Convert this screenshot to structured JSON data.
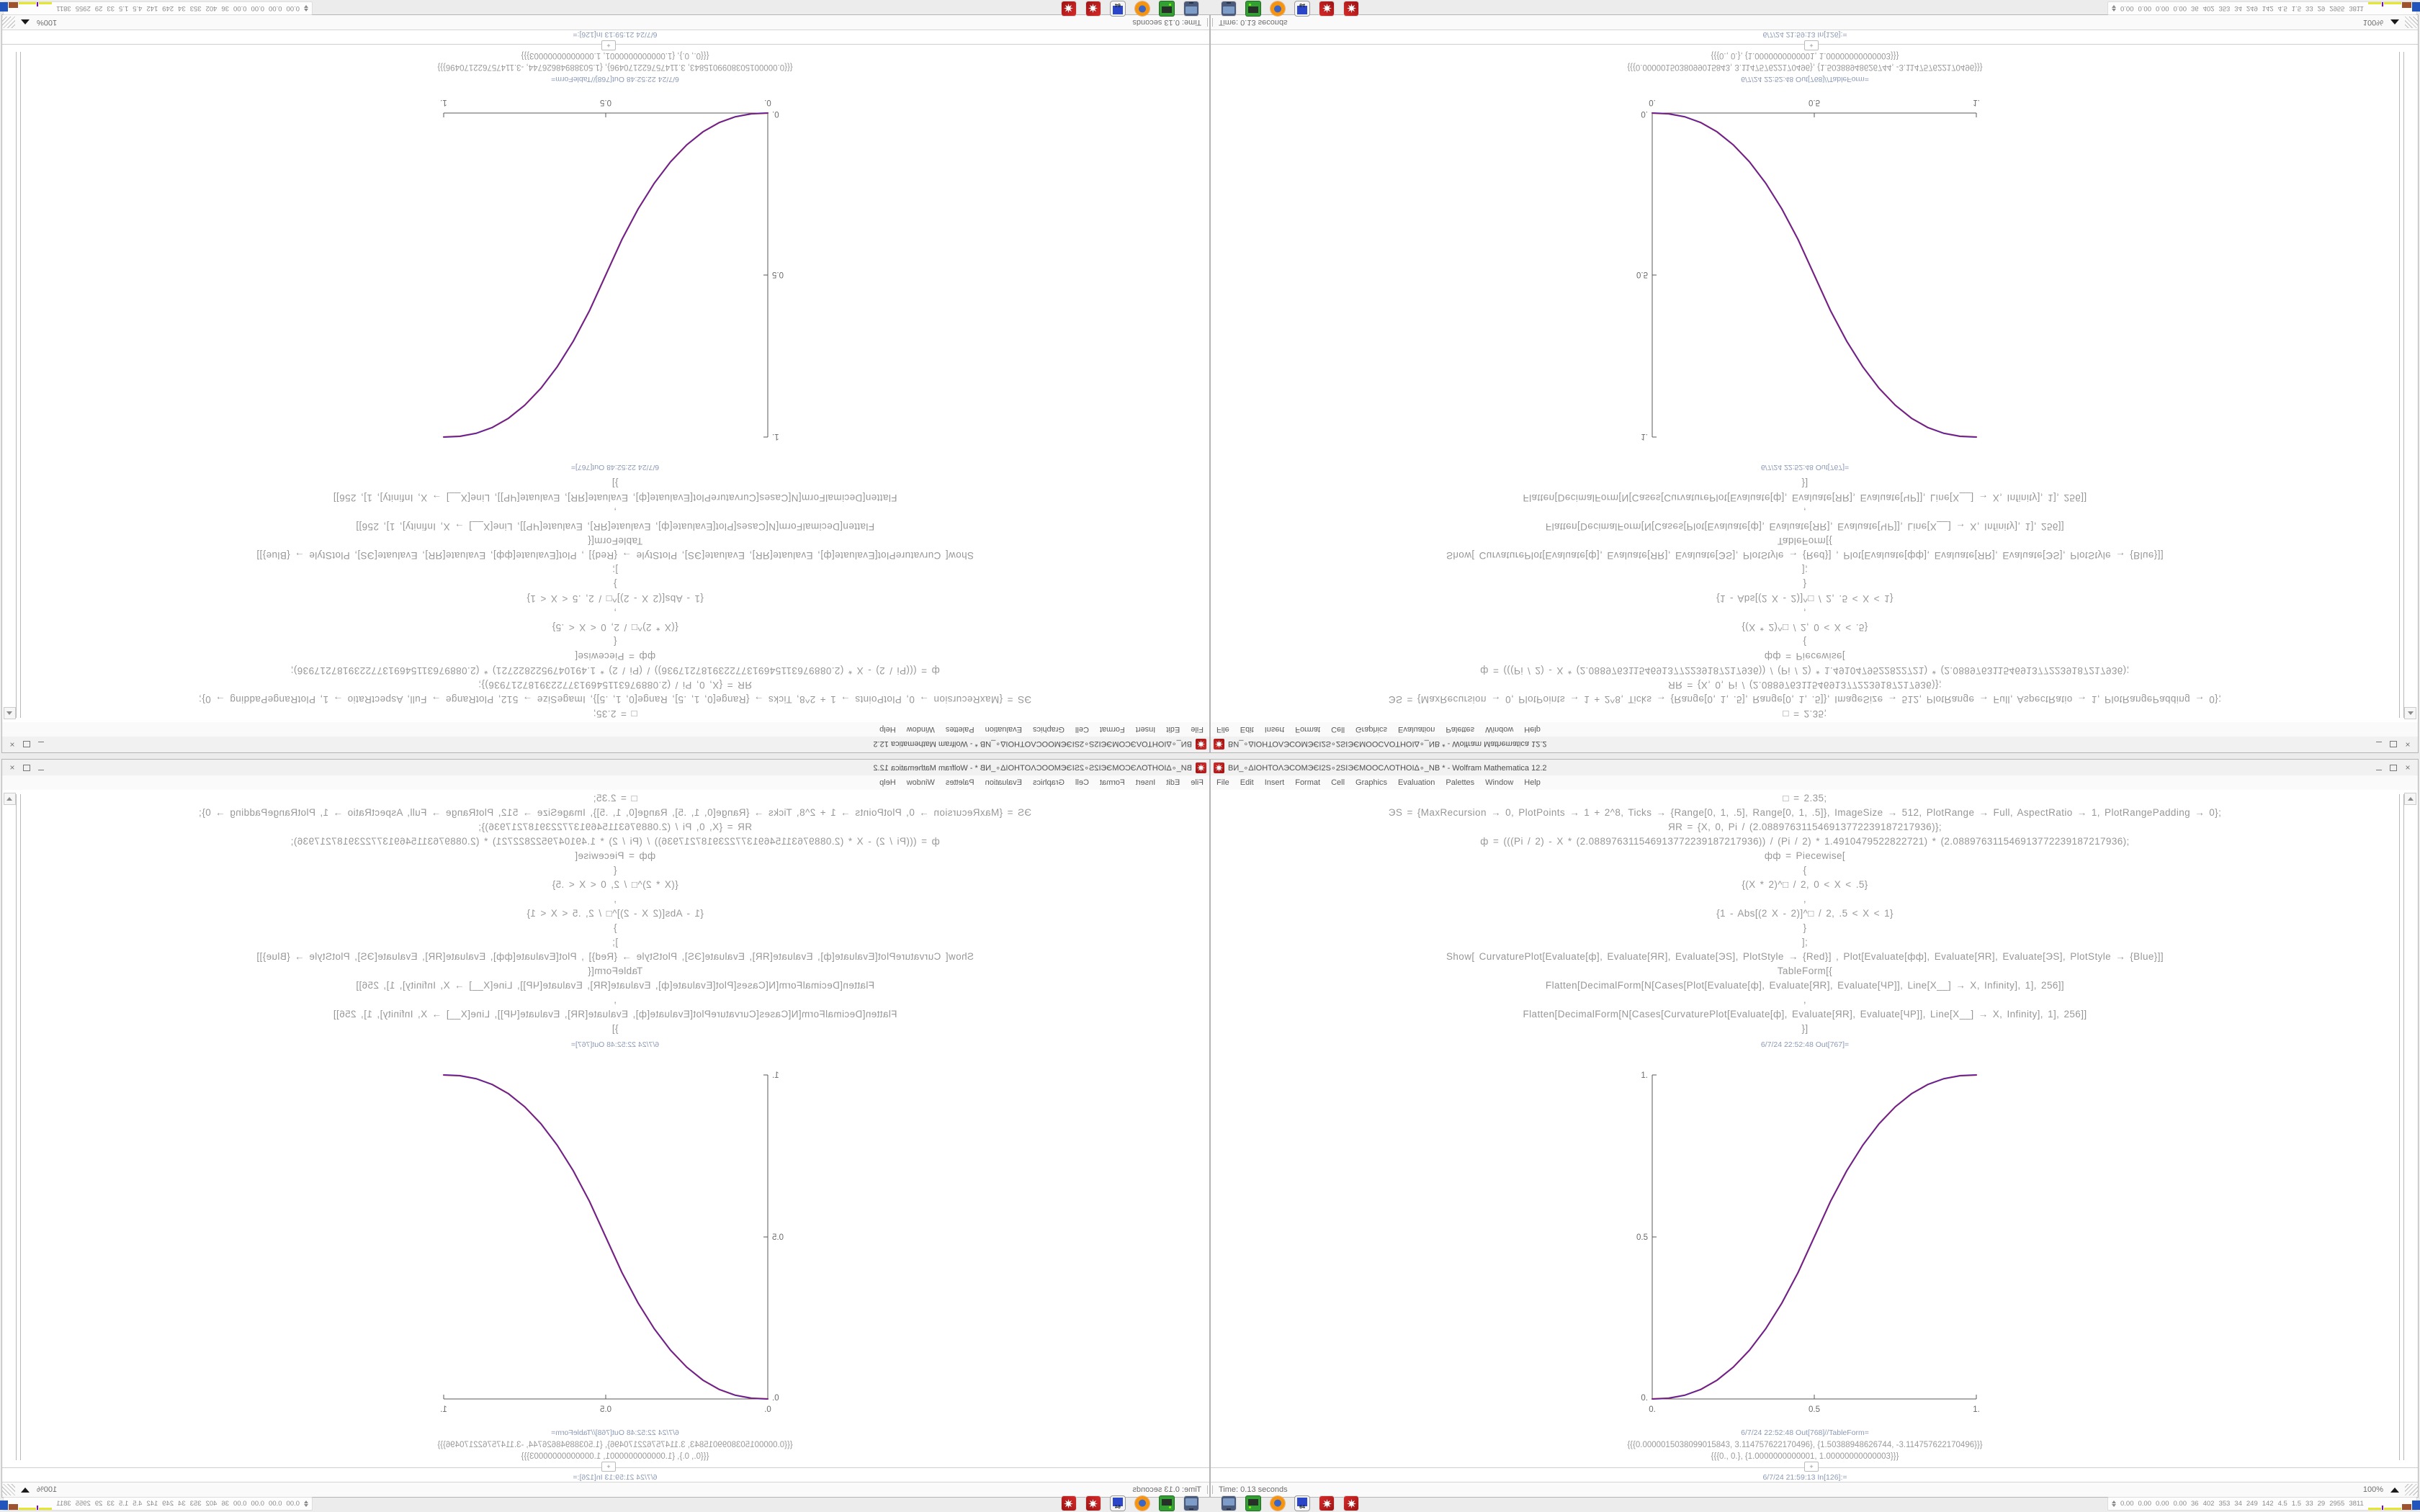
{
  "window": {
    "title": "ВИ_∘ΔІОНТОΛЭСОМЭЄІ2S∘2SІЭЄМООСΛОТНОІΔ∘_NB * - Wolfram Mathematica 12.2",
    "app_icon": "mathematica-spikey-icon",
    "controls": [
      "minimize",
      "maximize",
      "close"
    ]
  },
  "menu": {
    "items": [
      "File",
      "Edit",
      "Insert",
      "Format",
      "Cell",
      "Graphics",
      "Evaluation",
      "Palettes",
      "Window",
      "Help"
    ]
  },
  "notebook": {
    "code_lines": [
      "□ = 2.35;",
      "ЭS = {MaxRecursion → 0, PlotPoints → 1 + 2^8, Ticks → {Range[0, 1, .5], Range[0, 1, .5]}, ImageSize → 512, PlotRange → Full, AspectRatio → 1, PlotRangePadding → 0};",
      "ЯR = {X, 0, Pi / (2.088976311546913772239187217936)};",
      "ф = (((Pi / 2) - X * (2.088976311546913772239187217936)) / (Pi / 2) * 1.4910479522822721) * (2.088976311546913772239187217936);",
      "фф = Piecewise[",
      "{",
      "{(X * 2)^□ / 2, 0 < X < .5}",
      ",",
      "{1 - Abs[(2 X - 2)]^□ / 2, .5 < X < 1}",
      "}",
      "];",
      "Show[  CurvaturePlot[Evaluate[ф], Evaluate[ЯR], Evaluate[ЭS], PlotStyle → {Red}]  ,  Plot[Evaluate[фф], Evaluate[ЯR], Evaluate[ЭS], PlotStyle → {Blue}]]",
      "TableForm[{",
      "Flatten[DecimalForm[N[Cases[Plot[Evaluate[ф], Evaluate[ЯR], Evaluate[ЧP]], Line[X__] → X, Infinity], 1], 256]]",
      ",",
      "Flatten[DecimalForm[N[Cases[CurvaturePlot[Evaluate[ф], Evaluate[ЯR], Evaluate[ЧP]], Line[X__] → X, Infinity], 1], 256]]",
      "}]"
    ],
    "out767_label": "6/7/24 22:52:48 Out[767]=",
    "out768_label": "6/7/24 22:52:48 Out[768]//TableForm=",
    "out768_rows": [
      "{{{0.0000015038099015843, 3.114757622170496}, {1.50388948626744, -3.114757622170496}}}",
      "{{{0., 0.}, {1.0000000000001, 1.00000000000003}}}"
    ],
    "insert_plus": "+",
    "in126_label": "6/7/24 21:59:13 In[126]:="
  },
  "status": {
    "left": "Time: 0.13 seconds",
    "zoom": "100%"
  },
  "taskbar": {
    "icons": [
      {
        "name": "display-settings-icon",
        "icon": "icon-display"
      },
      {
        "name": "disk-utility-icon",
        "icon": "icon-disk"
      },
      {
        "name": "firefox-icon",
        "icon": "icon-firefox"
      },
      {
        "name": "floppy-64-icon",
        "icon": "icon-floppy",
        "label": "64"
      },
      {
        "name": "mathematica-icon",
        "icon": "icon-mathematica",
        "star": true
      },
      {
        "name": "mathematica-icon-2",
        "icon": "icon-mathematica",
        "star": true
      }
    ],
    "tray": {
      "numbers": [
        "0.00",
        "0.00",
        "0.00",
        "0.00",
        "36",
        "402",
        "353",
        "34",
        "249",
        "142",
        "4.5",
        "1.5",
        "33",
        "29",
        "2955",
        "3811"
      ],
      "graph": [
        {
          "c": "#e6e62e",
          "w": 18,
          "h": 3
        },
        {
          "c": "#8800cc",
          "w": 2,
          "h": 6
        },
        {
          "c": "#e6e62e",
          "w": 24,
          "h": 3
        },
        {
          "c": "#a0522d",
          "w": 13,
          "h": 8
        },
        {
          "c": "#2255bb",
          "w": 14,
          "h": 13
        },
        {
          "c": "#a0522d",
          "w": 13,
          "h": 8
        },
        {
          "c": "#44bb22",
          "w": 28,
          "h": 3
        },
        {
          "c": "#33cc33",
          "w": 2,
          "h": 7
        },
        {
          "c": "#33cc33",
          "w": 3,
          "h": 5
        }
      ]
    }
  },
  "chart_data": {
    "type": "line",
    "title": "",
    "xlabel": "",
    "ylabel": "",
    "xlim": [
      0,
      1
    ],
    "ylim": [
      0,
      1
    ],
    "x_ticks": [
      "0.",
      "0.5",
      "1."
    ],
    "y_ticks": [
      "0.",
      "0.5",
      "1."
    ],
    "grid": false,
    "legend": "none",
    "axis_color": "#5a5a5a",
    "tick_text_color": "#6a6a6a",
    "description": "Piecewise smoothstep y=(2x)^2.35/2 for 0<x<0.5, y=1-(2-2x)^2.35/2 for 0.5<x<1; red CurvaturePlot and blue Plot overlap",
    "x": [
      0,
      0.05,
      0.1,
      0.15,
      0.2,
      0.25,
      0.3,
      0.35,
      0.4,
      0.45,
      0.5,
      0.55,
      0.6,
      0.65,
      0.7,
      0.75,
      0.8,
      0.85,
      0.9,
      0.95,
      1
    ],
    "series": [
      {
        "name": "CurvaturePlot[ф] (Red)",
        "color": "#e02424",
        "values": [
          0,
          0.0022,
          0.0114,
          0.0295,
          0.058,
          0.0981,
          0.1505,
          0.2163,
          0.296,
          0.3903,
          0.5,
          0.6097,
          0.704,
          0.7837,
          0.8495,
          0.9019,
          0.942,
          0.9705,
          0.9886,
          0.9978,
          1
        ]
      },
      {
        "name": "Plot[фф] (Blue)",
        "color": "#2b2bd0",
        "values": [
          0,
          0.0022,
          0.0114,
          0.0295,
          0.058,
          0.0981,
          0.1505,
          0.2163,
          0.296,
          0.3903,
          0.5,
          0.6097,
          0.704,
          0.7837,
          0.8495,
          0.9019,
          0.942,
          0.9705,
          0.9886,
          0.9978,
          1
        ]
      }
    ]
  },
  "layout_note": "Same screenshot tiled 2x2: bottom-right original, bottom-left mirrored horizontally, top-right mirrored vertically, top-left rotated 180°"
}
